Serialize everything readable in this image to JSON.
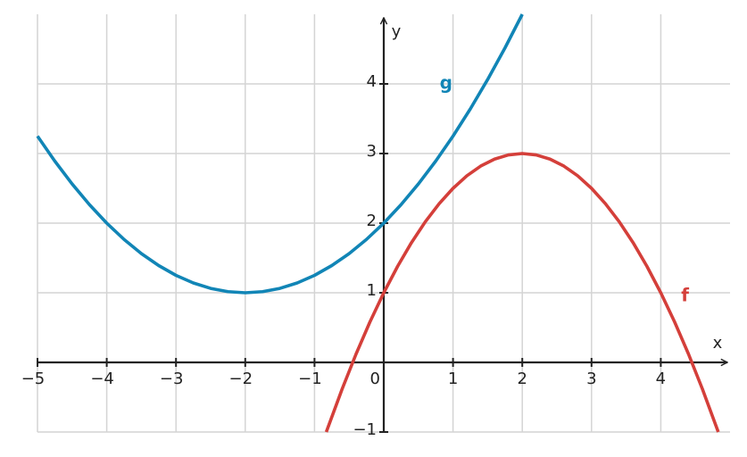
{
  "chart_data": {
    "type": "line",
    "xlabel": "x",
    "ylabel": "y",
    "xlim": [
      -5,
      5
    ],
    "ylim": [
      -1,
      5
    ],
    "xticks": [
      {
        "value": -5,
        "label": "−5"
      },
      {
        "value": -4,
        "label": "−4"
      },
      {
        "value": -3,
        "label": "−3"
      },
      {
        "value": -2,
        "label": "−2"
      },
      {
        "value": -1,
        "label": "−1"
      },
      0,
      1,
      2,
      3,
      4
    ],
    "yticks": [
      {
        "value": -1,
        "label": "−1"
      },
      1,
      2,
      3,
      4
    ],
    "grid": true,
    "series": [
      {
        "name": "g",
        "color": "#1185b6",
        "x": [
          -5,
          -4.75,
          -4.5,
          -4.25,
          -4,
          -3.75,
          -3.5,
          -3.25,
          -3,
          -2.75,
          -2.5,
          -2.25,
          -2,
          -1.75,
          -1.5,
          -1.25,
          -1,
          -0.75,
          -0.5,
          -0.25,
          0,
          0.25,
          0.5,
          0.75,
          1,
          1.25,
          1.5,
          1.75,
          2
        ],
        "values": [
          3.25,
          2.891,
          2.563,
          2.266,
          2,
          1.766,
          1.563,
          1.391,
          1.25,
          1.141,
          1.063,
          1.016,
          1,
          1.016,
          1.063,
          1.141,
          1.25,
          1.391,
          1.563,
          1.766,
          2,
          2.266,
          2.563,
          2.891,
          3.25,
          3.641,
          4.063,
          4.516,
          5
        ]
      },
      {
        "name": "f",
        "color": "#d43f3a",
        "x": [
          -0.83,
          -0.6,
          -0.4,
          -0.2,
          0,
          0.2,
          0.4,
          0.6,
          0.8,
          1,
          1.2,
          1.4,
          1.6,
          1.8,
          2,
          2.2,
          2.4,
          2.6,
          2.8,
          3,
          3.2,
          3.4,
          3.6,
          3.8,
          4,
          4.2,
          4.4,
          4.6,
          4.83
        ],
        "values": [
          -1,
          -0.38,
          0.12,
          0.58,
          1,
          1.38,
          1.72,
          2.02,
          2.28,
          2.5,
          2.68,
          2.82,
          2.92,
          2.98,
          3,
          2.98,
          2.92,
          2.82,
          2.68,
          2.5,
          2.28,
          2.02,
          1.72,
          1.38,
          1,
          0.58,
          0.12,
          -0.38,
          -1
        ]
      }
    ]
  }
}
